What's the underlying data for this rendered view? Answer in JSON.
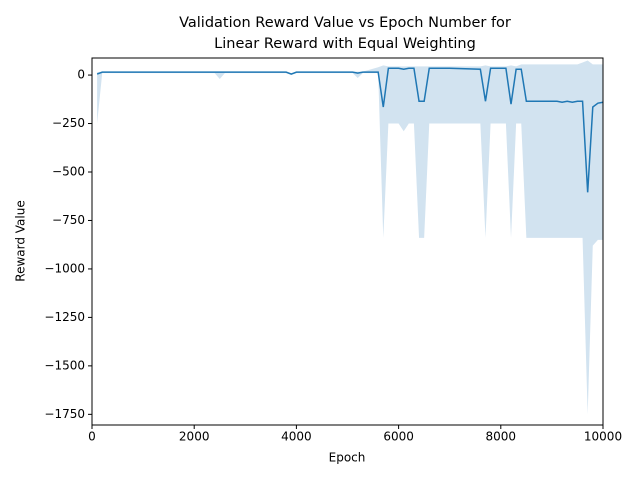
{
  "chart_data": {
    "type": "line",
    "title": [
      "Validation Reward Value vs Epoch Number for",
      "Linear Reward with Equal Weighting"
    ],
    "xlabel": "Epoch",
    "ylabel": "Reward Value",
    "x": [
      100,
      200,
      1000,
      2000,
      2400,
      2500,
      2600,
      3000,
      3800,
      3900,
      4000,
      5000,
      5100,
      5200,
      5300,
      5600,
      5700,
      5800,
      6000,
      6100,
      6200,
      6300,
      6400,
      6500,
      6600,
      7000,
      7600,
      7700,
      7800,
      8100,
      8200,
      8300,
      8400,
      8500,
      9000,
      9100,
      9200,
      9300,
      9400,
      9500,
      9600,
      9700,
      9800,
      9900,
      10000
    ],
    "series": [
      {
        "color": "#1f77b4",
        "band_color": "#d2e3f0",
        "values": [
          5,
          15,
          15,
          15,
          15,
          15,
          15,
          15,
          15,
          5,
          15,
          15,
          15,
          10,
          15,
          15,
          -165,
          35,
          35,
          30,
          35,
          35,
          -135,
          -135,
          35,
          35,
          30,
          -135,
          35,
          35,
          -150,
          30,
          30,
          -135,
          -135,
          -135,
          -140,
          -135,
          -140,
          -135,
          -135,
          -605,
          -165,
          -145,
          -140
        ],
        "lower": [
          -250,
          10,
          10,
          10,
          10,
          -20,
          10,
          10,
          10,
          0,
          10,
          10,
          10,
          -15,
          10,
          10,
          -840,
          -250,
          -250,
          -290,
          -250,
          -250,
          -840,
          -840,
          -250,
          -250,
          -250,
          -840,
          -250,
          -250,
          -840,
          -250,
          -250,
          -840,
          -840,
          -840,
          -840,
          -840,
          -840,
          -840,
          -840,
          -1750,
          -880,
          -850,
          -850
        ],
        "upper": [
          15,
          18,
          18,
          18,
          18,
          18,
          18,
          18,
          18,
          10,
          18,
          18,
          18,
          18,
          18,
          40,
          50,
          45,
          45,
          45,
          45,
          45,
          45,
          45,
          45,
          45,
          45,
          50,
          45,
          45,
          50,
          45,
          55,
          55,
          55,
          55,
          55,
          55,
          55,
          55,
          65,
          75,
          55,
          55,
          55
        ]
      }
    ],
    "xlim": [
      0,
      10000
    ],
    "xticks": [
      0,
      2000,
      4000,
      6000,
      8000,
      10000
    ],
    "ylim": [
      -1805,
      88
    ],
    "yticks": [
      0,
      {
        "value": -250,
        "label": "−250"
      },
      {
        "value": -500,
        "label": "−500"
      },
      {
        "value": -750,
        "label": "−750"
      },
      {
        "value": -1000,
        "label": "−1000"
      },
      {
        "value": -1250,
        "label": "−1250"
      },
      {
        "value": -1500,
        "label": "−1500"
      },
      {
        "value": -1750,
        "label": "−1750"
      }
    ]
  }
}
